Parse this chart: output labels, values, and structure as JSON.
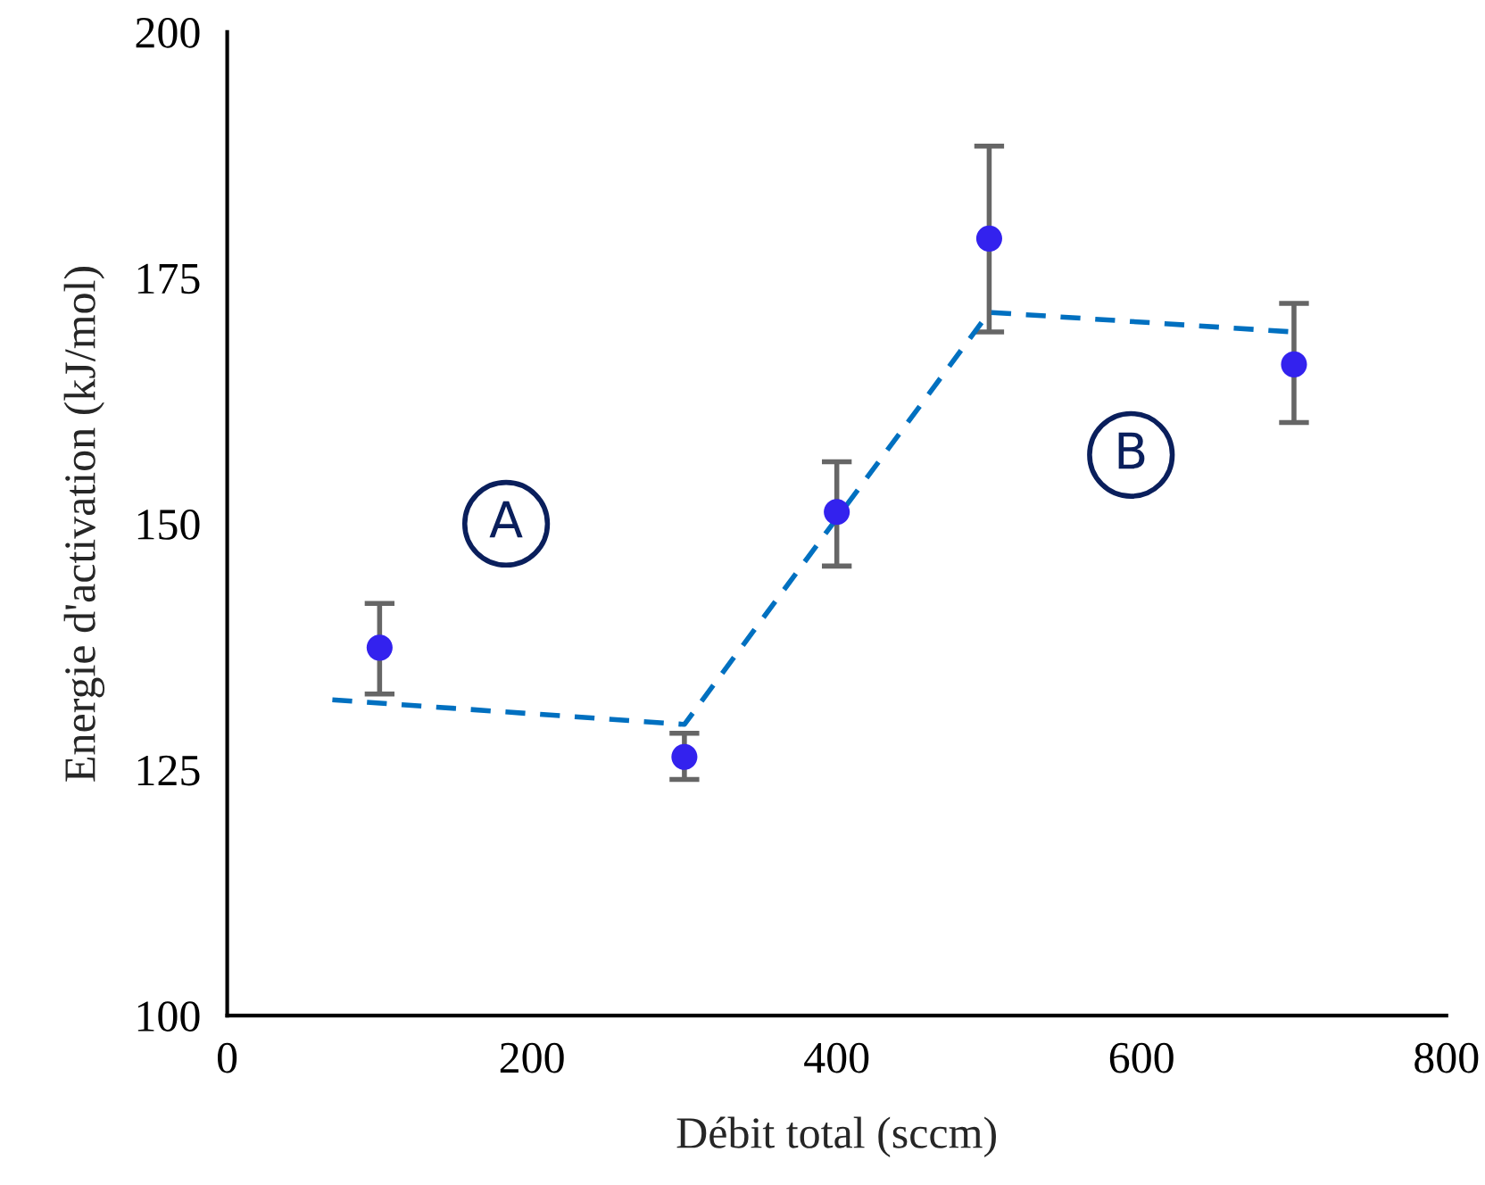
{
  "chart_data": {
    "type": "scatter",
    "xlabel": "Débit total (sccm)",
    "ylabel": "Energie d'activation (kJ/mol)",
    "x": [
      100,
      300,
      400,
      500,
      700
    ],
    "series": [
      {
        "color": "#3322ee",
        "values": [
          137.4,
          126.3,
          151.2,
          179.0,
          166.2
        ],
        "errors": [
          [
            132.7,
            141.9
          ],
          [
            124.0,
            128.7
          ],
          [
            145.7,
            156.3
          ],
          [
            169.5,
            188.4
          ],
          [
            160.3,
            172.4
          ]
        ],
        "marker": "circle"
      },
      {
        "type": "line",
        "color": "#0070c0",
        "x": [
          69,
          300,
          500,
          700
        ],
        "values": [
          132.1,
          129.6,
          171.5,
          169.5
        ],
        "line_style": "dashed",
        "marker": "none"
      }
    ],
    "annotations": [
      "A",
      "B"
    ],
    "xlim": [
      0,
      800
    ],
    "xticks": [
      0,
      200,
      400,
      600,
      800
    ],
    "ylim": [
      100,
      200
    ],
    "yticks": [
      100,
      125,
      150,
      175,
      200
    ],
    "grid": false,
    "legend": false
  }
}
